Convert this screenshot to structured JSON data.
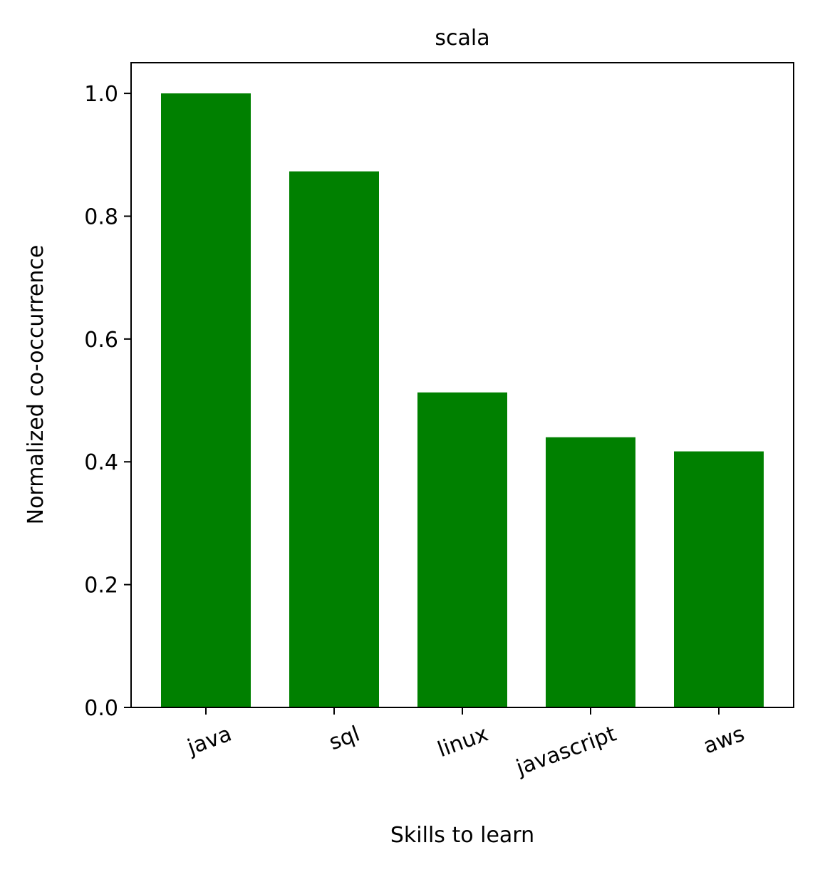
{
  "chart_data": {
    "type": "bar",
    "title": "scala",
    "xlabel": "Skills to learn",
    "ylabel": "Normalized co-occurrence",
    "categories": [
      "java",
      "sql",
      "linux",
      "javascript",
      "aws"
    ],
    "values": [
      1.0,
      0.873,
      0.513,
      0.44,
      0.417
    ],
    "ylim": [
      0,
      1.05
    ],
    "yticks": [
      0.0,
      0.2,
      0.4,
      0.6,
      0.8,
      1.0
    ],
    "ytick_labels": [
      "0.0",
      "0.2",
      "0.4",
      "0.6",
      "0.8",
      "1.0"
    ],
    "bar_color": "#008000",
    "grid": false,
    "legend": "none"
  }
}
